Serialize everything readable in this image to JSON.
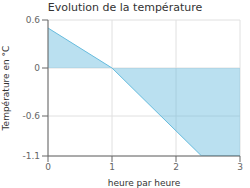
{
  "chart_data": {
    "type": "area",
    "title": "Evolution de la température",
    "xlabel": "heure par heure",
    "ylabel": "Température en °C",
    "x": [
      0,
      1,
      2.4,
      3
    ],
    "values": [
      0.5,
      0.0,
      -1.1,
      -1.1
    ],
    "color": "#66bbdd",
    "xlim": [
      0,
      3
    ],
    "ylim": [
      -1.1,
      0.6
    ],
    "xticks": [
      0,
      1,
      2,
      3
    ],
    "yticks": [
      -1.1,
      -0.6,
      0.0,
      0.6
    ],
    "grid": true
  }
}
